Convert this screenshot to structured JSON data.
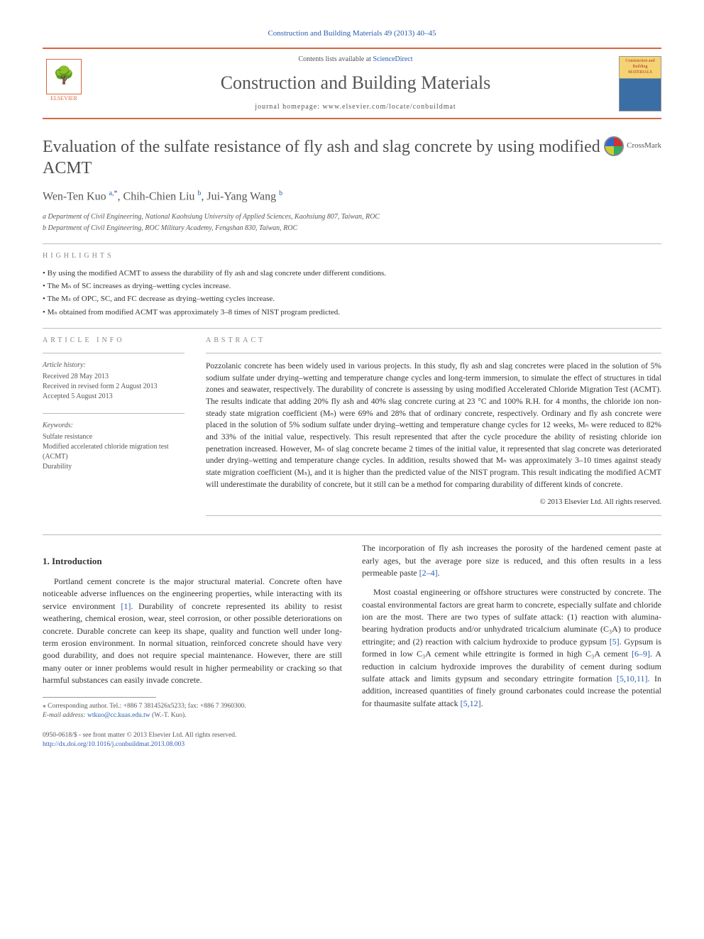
{
  "header": {
    "citation": "Construction and Building Materials 49 (2013) 40–45",
    "contents_prefix": "Contents lists available at ",
    "contents_link": "ScienceDirect",
    "journal_name": "Construction and Building Materials",
    "homepage_prefix": "journal homepage: ",
    "homepage_url": "www.elsevier.com/locate/conbuildmat",
    "publisher_label": "ELSEVIER",
    "cover_text": "Construction and Building MATERIALS"
  },
  "crossmark_label": "CrossMark",
  "article": {
    "title": "Evaluation of the sulfate resistance of fly ash and slag concrete by using modified ACMT",
    "authors_html": "Wen-Ten Kuo <sup>a,*</sup>, Chih-Chien Liu <sup>b</sup>, Jui-Yang Wang <sup>b</sup>",
    "affiliations": [
      "a Department of Civil Engineering, National Kaohsiung University of Applied Sciences, Kaohsiung 807, Taiwan, ROC",
      "b Department of Civil Engineering, ROC Military Academy, Fengshan 830, Taiwan, ROC"
    ]
  },
  "highlights": {
    "heading": "HIGHLIGHTS",
    "items": [
      "By using the modified ACMT to assess the durability of fly ash and slag concrete under different conditions.",
      "The Mₙ of SC increases as drying–wetting cycles increase.",
      "The Mₛ of OPC, SC, and FC decrease as drying–wetting cycles increase.",
      "Mₙ obtained from modified ACMT was approximately 3–8 times of NIST program predicted."
    ]
  },
  "article_info": {
    "heading": "ARTICLE INFO",
    "history_label": "Article history:",
    "history": [
      "Received 28 May 2013",
      "Received in revised form 2 August 2013",
      "Accepted 5 August 2013"
    ],
    "keywords_label": "Keywords:",
    "keywords": [
      "Sulfate resistance",
      "Modified accelerated chloride migration test (ACMT)",
      "Durability"
    ]
  },
  "abstract": {
    "heading": "ABSTRACT",
    "text": "Pozzolanic concrete has been widely used in various projects. In this study, fly ash and slag concretes were placed in the solution of 5% sodium sulfate under drying–wetting and temperature change cycles and long-term immersion, to simulate the effect of structures in tidal zones and seawater, respectively. The durability of concrete is assessing by using modified Accelerated Chloride Migration Test (ACMT). The results indicate that adding 20% fly ash and 40% slag concrete curing at 23 °C and 100% R.H. for 4 months, the chloride ion non-steady state migration coefficient (Mₙ) were 69% and 28% that of ordinary concrete, respectively. Ordinary and fly ash concrete were placed in the solution of 5% sodium sulfate under drying–wetting and temperature change cycles for 12 weeks, Mₙ were reduced to 82% and 33% of the initial value, respectively. This result represented that after the cycle procedure the ability of resisting chloride ion penetration increased. However, Mₙ of slag concrete became 2 times of the initial value, it represented that slag concrete was deteriorated under drying–wetting and temperature change cycles. In addition, results showed that Mₙ was approximately 3–10 times against steady state migration coefficient (Mₛ), and it is higher than the predicted value of the NIST program. This result indicating the modified ACMT will underestimate the durability of concrete, but it still can be a method for comparing durability of different kinds of concrete.",
    "copyright": "© 2013 Elsevier Ltd. All rights reserved."
  },
  "intro": {
    "heading": "1. Introduction",
    "p1": "Portland cement concrete is the major structural material. Concrete often have noticeable adverse influences on the engineering properties, while interacting with its service environment [1]. Durability of concrete represented its ability to resist weathering, chemical erosion, wear, steel corrosion, or other possible deteriorations on concrete. Durable concrete can keep its shape, quality and function well under long-term erosion environment. In normal situation, reinforced concrete should have very good durability, and does not require special maintenance. However, there are still many outer or inner problems would result in higher permeability or cracking so that harmful substances can easily invade concrete.",
    "p1_tail": "The incorporation of fly ash increases the porosity of the hardened cement paste at early ages, but the average pore size is reduced, and this often results in a less permeable paste [2–4].",
    "p2": "Most coastal engineering or offshore structures were constructed by concrete. The coastal environmental factors are great harm to concrete, especially sulfate and chloride ion are the most. There are two types of sulfate attack: (1) reaction with alumina-bearing hydration products and/or unhydrated tricalcium aluminate (C₃A) to produce ettringite; and (2) reaction with calcium hydroxide to produce gypsum [5]. Gypsum is formed in low C₃A cement while ettringite is formed in high C₃A cement [6–9]. A reduction in calcium hydroxide improves the durability of cement during sodium sulfate attack and limits gypsum and secondary ettringite formation [5,10,11]. In addition, increased quantities of finely ground carbonates could increase the potential for thaumasite sulfate attack [5,12]."
  },
  "footnote": {
    "marker": "⁎ Corresponding author. Tel.: +886 7 3814526x5233; fax: +886 7 3960300.",
    "email_label": "E-mail address: ",
    "email": "wtkuo@cc.kuas.edu.tw",
    "email_suffix": " (W.-T. Kuo)."
  },
  "footer": {
    "line1": "0950-0618/$ - see front matter © 2013 Elsevier Ltd. All rights reserved.",
    "doi": "http://dx.doi.org/10.1016/j.conbuildmat.2013.08.003"
  },
  "colors": {
    "accent": "#d9663d",
    "link": "#2a5db0",
    "text_gray": "#555555",
    "rule_gray": "#bbbbbb"
  }
}
